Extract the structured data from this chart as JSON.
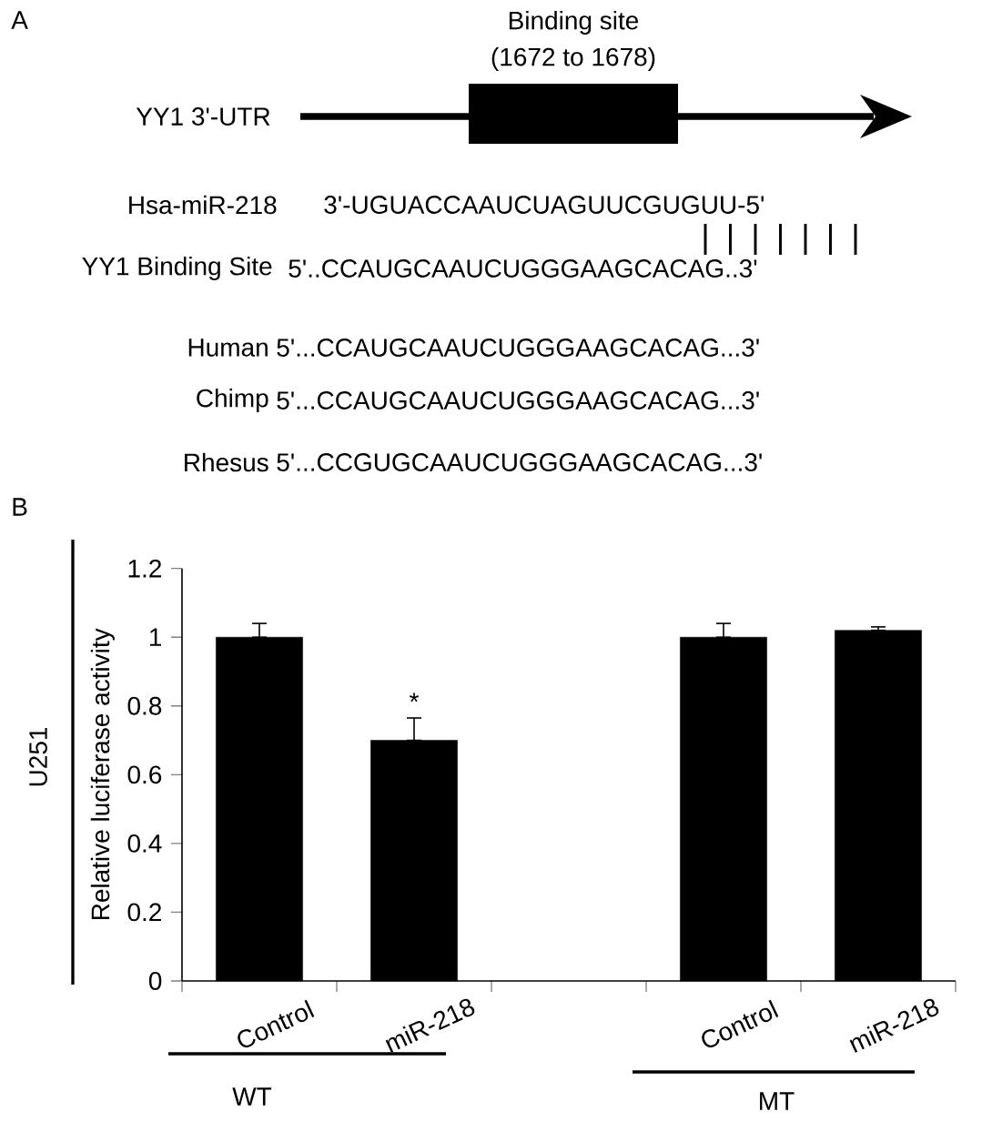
{
  "chart_data": [
    {
      "type": "other",
      "annotations": [
        "A",
        "Binding site",
        "(1672 to 1678)",
        "YY1 3'-UTR",
        "Hsa-miR-218",
        "3'-UGUACCAAUCUAGUUCGUGUU-5'",
        "YY1 Binding Site",
        "5'..CCAUGCAAUCUGGGAAGCACAG..3'",
        "Human",
        "5'...CCAUGCAAUCUGGGAAGCACAG...3'",
        "Chimp",
        "5'...CCAUGCAAUCUGGGAAGCACAG...3'",
        "Rhesus",
        "5'...CCGUGCAAUCUGGGAAGCACAG...3'"
      ]
    },
    {
      "type": "bar",
      "ylabel": "Relative luciferase activity",
      "categories": [
        "Control",
        "miR-218",
        null,
        "Control",
        "miR-218"
      ],
      "values": [
        1.0,
        0.7,
        null,
        1.0,
        1.02
      ],
      "errors": [
        [
          1.0,
          1.04
        ],
        [
          0.7,
          0.765
        ],
        null,
        [
          1.0,
          1.04
        ],
        [
          1.02,
          1.03
        ]
      ],
      "color": "#000000",
      "ylim": [
        0,
        1.2
      ],
      "yticks": [
        0,
        0.2,
        0.4,
        0.6,
        0.8,
        1,
        1.2
      ],
      "annotations": [
        "B",
        "*",
        "WT",
        "MT",
        "U251"
      ]
    }
  ]
}
